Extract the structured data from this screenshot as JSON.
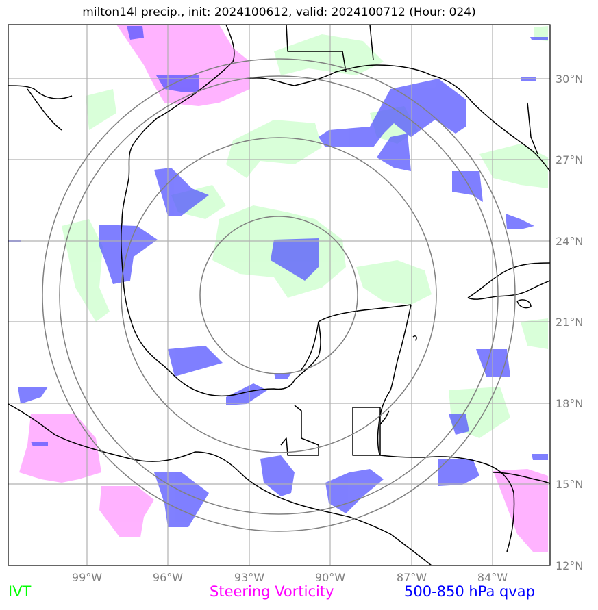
{
  "title": "milton14l precip., init: 2024100612, valid: 2024100712 (Hour: 024)",
  "legend": {
    "ivt": "IVT",
    "vorticity": "Steering Vorticity",
    "qvap": "500-850 hPa qvap"
  },
  "colors": {
    "ivt": "#00ff00",
    "vorticity": "#ff00ff",
    "qvap": "#0000ff",
    "ivt_fill": "#ccffcc",
    "vort_fill": "#ff99ff",
    "qvap_fill": "#6666ff",
    "grid": "#b0b0b0",
    "rings": "#808080"
  },
  "map": {
    "lon_range": [
      -102,
      -82
    ],
    "lat_range": [
      12,
      32
    ],
    "lat_labels": [
      "30°N",
      "27°N",
      "24°N",
      "21°N",
      "18°N",
      "15°N",
      "12°N"
    ],
    "lon_labels": [
      "99°W",
      "96°W",
      "93°W",
      "90°W",
      "87°W",
      "84°W"
    ],
    "storm_center": {
      "lon": -92.0,
      "lat": 22.2
    },
    "ring_count": 4
  }
}
